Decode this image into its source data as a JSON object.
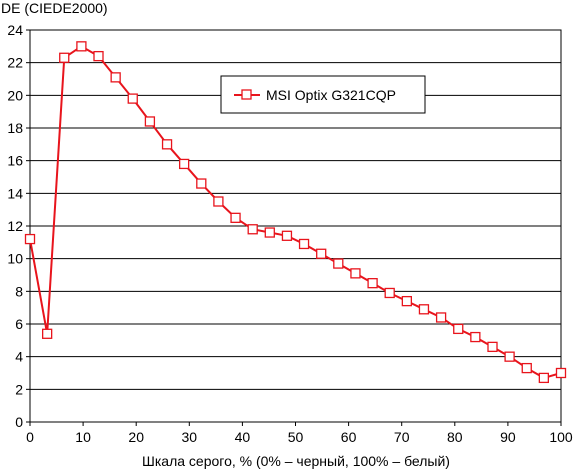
{
  "chart_data": {
    "type": "line",
    "ylabel": "DE (CIEDE2000)",
    "xlabel": "Шкала серого, % (0% – черный, 100% – белый)",
    "xlim": [
      0,
      100
    ],
    "ylim": [
      0,
      24
    ],
    "x_ticks": [
      0,
      10,
      20,
      30,
      40,
      50,
      60,
      70,
      80,
      90,
      100
    ],
    "y_ticks": [
      0,
      2,
      4,
      6,
      8,
      10,
      12,
      14,
      16,
      18,
      20,
      22,
      24
    ],
    "grid": "horizontal",
    "legend_position": "top-right",
    "series": [
      {
        "name": "MSI Optix G321CQP",
        "color": "#e8141c",
        "marker": "square-open",
        "x": [
          0,
          3.23,
          6.45,
          9.68,
          12.9,
          16.13,
          19.35,
          22.58,
          25.81,
          29.03,
          32.26,
          35.48,
          38.71,
          41.94,
          45.16,
          48.39,
          51.61,
          54.84,
          58.06,
          61.29,
          64.52,
          67.74,
          70.97,
          74.19,
          77.42,
          80.65,
          83.87,
          87.1,
          90.32,
          93.55,
          96.77,
          100
        ],
        "y": [
          11.2,
          5.4,
          22.3,
          23.0,
          22.4,
          21.1,
          19.8,
          18.4,
          17.0,
          15.8,
          14.6,
          13.5,
          12.5,
          11.8,
          11.6,
          11.4,
          10.9,
          10.3,
          9.7,
          9.1,
          8.5,
          7.9,
          7.4,
          6.9,
          6.4,
          5.7,
          5.2,
          4.6,
          4.0,
          3.3,
          2.7,
          3.0
        ]
      }
    ]
  }
}
